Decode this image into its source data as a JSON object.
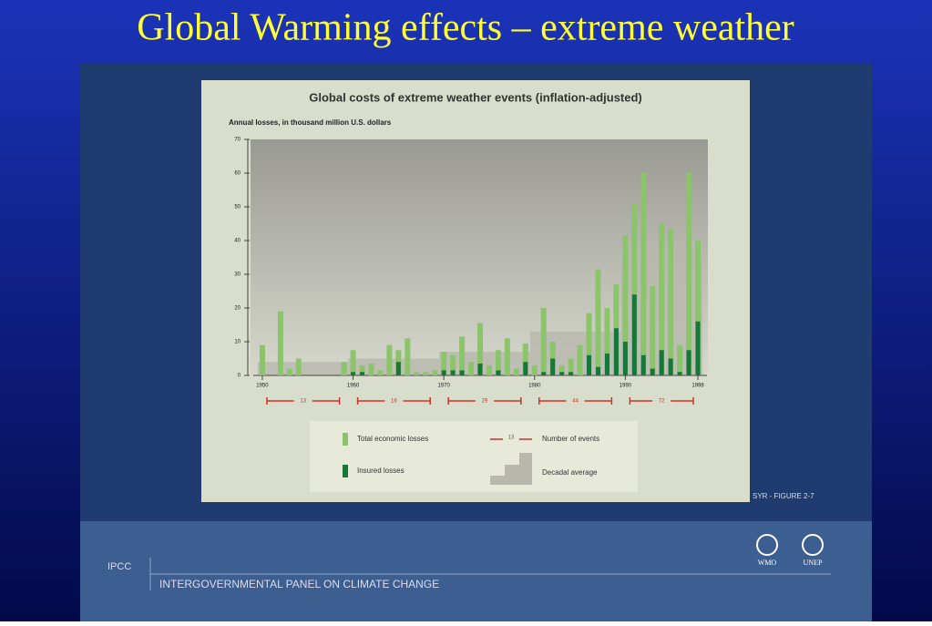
{
  "slide": {
    "title": "Global Warming effects – extreme weather",
    "figure_label": "SYR - FIGURE 2-7",
    "org_short": "IPCC",
    "org_long": "INTERGOVERNMENTAL PANEL ON CLIMATE CHANGE",
    "logos": [
      "WMO",
      "UNEP"
    ]
  },
  "chart_data": {
    "type": "bar",
    "title": "Global costs of extreme weather events (inflation-adjusted)",
    "y_label": "Annual losses, in thousand million U.S. dollars",
    "x": [
      1950,
      1951,
      1952,
      1953,
      1954,
      1955,
      1956,
      1957,
      1958,
      1959,
      1960,
      1961,
      1962,
      1963,
      1964,
      1965,
      1966,
      1967,
      1968,
      1969,
      1970,
      1971,
      1972,
      1973,
      1974,
      1975,
      1976,
      1977,
      1978,
      1979,
      1980,
      1981,
      1982,
      1983,
      1984,
      1985,
      1986,
      1987,
      1988,
      1989,
      1990,
      1991,
      1992,
      1993,
      1994,
      1995,
      1996,
      1997,
      1998
    ],
    "series": [
      {
        "name": "Total economic losses",
        "color": "#8cc46c",
        "values": [
          9,
          0,
          19,
          2,
          5,
          0,
          0,
          0,
          0,
          4,
          7.5,
          3,
          3.5,
          1.5,
          9,
          7.5,
          11,
          1,
          1,
          1.5,
          7,
          6,
          11.5,
          4,
          15.5,
          3,
          7.5,
          11,
          2,
          9.5,
          3,
          20,
          10,
          3,
          5,
          9,
          18.5,
          31.5,
          20,
          27,
          41.5,
          51,
          60,
          26.5,
          45,
          43.5,
          9,
          60,
          40
        ]
      },
      {
        "name": "Insured losses",
        "color": "#17763a",
        "values": [
          0,
          0,
          0,
          0,
          0,
          0,
          0,
          0,
          0,
          0,
          1,
          1,
          0,
          0,
          0,
          4,
          0,
          0,
          0,
          0,
          1.5,
          1.5,
          1.5,
          0,
          3.5,
          0,
          1.5,
          0,
          0,
          4,
          0,
          1,
          5,
          1,
          1,
          0,
          6,
          2.5,
          6.5,
          14,
          10,
          24,
          6,
          2,
          7.5,
          5,
          1,
          7.5,
          16
        ]
      }
    ],
    "decadal_average": {
      "name": "Decadal average",
      "color": "#b8b8ae",
      "values": [
        4,
        5,
        7,
        13,
        40
      ]
    },
    "number_of_events": {
      "name": "Number of events",
      "color": "#d03028",
      "values": [
        13,
        16,
        29,
        44,
        72
      ]
    },
    "xlim": [
      1949,
      1999
    ],
    "xticks": [
      1950,
      1960,
      1970,
      1980,
      1990,
      1998
    ],
    "ylim": [
      0,
      70
    ],
    "yticks": [
      0,
      10,
      20,
      30,
      40,
      50,
      60,
      70
    ]
  }
}
